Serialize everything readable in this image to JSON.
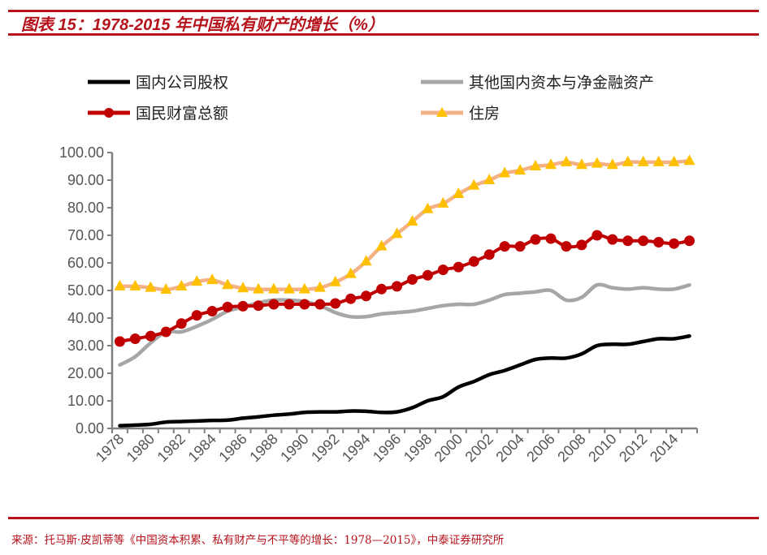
{
  "header": {
    "title": "图表 15：1978-2015 年中国私有财产的增长（%）"
  },
  "footer": {
    "source": "来源：托马斯·皮凯蒂等《中国资本积累、私有财产与不平等的增长：1978—2015》，中泰证券研究所"
  },
  "colors": {
    "brand_red": "#b5121b",
    "equity": "#000000",
    "other_assets": "#a6a6a6",
    "national_wealth": "#c00000",
    "housing_line": "#f4b183",
    "housing_marker": "#ffc000"
  },
  "chart_data": {
    "type": "line",
    "title": "1978-2015 年中国私有财产的增长（%）",
    "xlabel": "",
    "ylabel": "",
    "ylim": [
      0,
      100
    ],
    "yticks": [
      "0.00",
      "10.00",
      "20.00",
      "30.00",
      "40.00",
      "50.00",
      "60.00",
      "70.00",
      "80.00",
      "90.00",
      "100.00"
    ],
    "xtick_labels": [
      "1978",
      "1980",
      "1982",
      "1984",
      "1986",
      "1988",
      "1990",
      "1992",
      "1994",
      "1996",
      "1998",
      "2000",
      "2002",
      "2004",
      "2006",
      "2008",
      "2010",
      "2012",
      "2014"
    ],
    "grid": false,
    "legend_position": "top",
    "x": [
      1978,
      1979,
      1980,
      1981,
      1982,
      1983,
      1984,
      1985,
      1986,
      1987,
      1988,
      1989,
      1990,
      1991,
      1992,
      1993,
      1994,
      1995,
      1996,
      1997,
      1998,
      1999,
      2000,
      2001,
      2002,
      2003,
      2004,
      2005,
      2006,
      2007,
      2008,
      2009,
      2010,
      2011,
      2012,
      2013,
      2014,
      2015
    ],
    "series": [
      {
        "name": "国内公司股权",
        "key": "equity",
        "marker": "none",
        "values": [
          1.0,
          1.2,
          1.5,
          2.3,
          2.5,
          2.7,
          2.9,
          3.0,
          3.7,
          4.2,
          4.8,
          5.2,
          5.8,
          6.0,
          6.0,
          6.3,
          6.2,
          5.8,
          6.0,
          7.5,
          10.0,
          11.5,
          15.0,
          17.0,
          19.5,
          21.0,
          23.0,
          25.0,
          25.5,
          25.5,
          27.0,
          30.0,
          30.5,
          30.5,
          31.5,
          32.5,
          32.5,
          33.5
        ]
      },
      {
        "name": "其他国内资本与净金融资产",
        "key": "other_assets",
        "marker": "none",
        "values": [
          23.0,
          26.0,
          31.0,
          35.0,
          35.0,
          37.0,
          39.5,
          42.5,
          44.0,
          45.5,
          46.5,
          46.5,
          46.0,
          44.5,
          42.0,
          40.5,
          40.5,
          41.5,
          42.0,
          42.5,
          43.5,
          44.5,
          45.0,
          45.0,
          46.5,
          48.5,
          49.0,
          49.5,
          50.0,
          46.5,
          47.5,
          52.0,
          51.0,
          50.5,
          51.0,
          50.5,
          50.5,
          52.0
        ]
      },
      {
        "name": "国民财富总额",
        "key": "national_wealth",
        "marker": "circle",
        "values": [
          31.5,
          32.5,
          33.5,
          35.0,
          38.0,
          41.0,
          42.5,
          44.0,
          44.3,
          44.5,
          45.0,
          45.0,
          45.0,
          45.0,
          45.3,
          47.0,
          48.0,
          50.5,
          51.5,
          54.0,
          55.5,
          57.5,
          58.5,
          60.5,
          63.0,
          66.0,
          66.0,
          68.5,
          68.8,
          66.0,
          66.5,
          70.0,
          68.5,
          68.0,
          68.0,
          67.5,
          67.0,
          68.0
        ]
      },
      {
        "name": "住房",
        "key": "housing",
        "marker": "triangle",
        "values": [
          51.5,
          51.5,
          51.0,
          50.3,
          51.5,
          53.2,
          53.8,
          52.0,
          50.8,
          50.4,
          50.4,
          50.4,
          50.4,
          51.0,
          53.0,
          56.0,
          60.5,
          66.0,
          70.5,
          75.0,
          79.5,
          81.5,
          85.0,
          88.0,
          90.0,
          92.5,
          93.5,
          95.0,
          95.5,
          96.5,
          95.5,
          96.0,
          95.5,
          96.5,
          96.5,
          96.5,
          96.5,
          97.0
        ]
      }
    ]
  }
}
